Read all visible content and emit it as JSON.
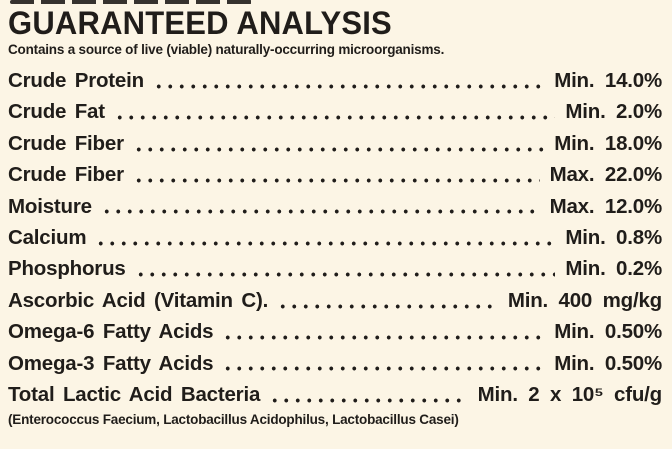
{
  "colors": {
    "background": "#FCF5E5",
    "ink": "#201D1A"
  },
  "header": {
    "title": "GUARANTEED ANALYSIS",
    "subtitle": "Contains a source of live (viable) naturally-occurring microorganisms."
  },
  "analysis": {
    "rows": [
      {
        "label": "Crude Protein",
        "value": "Min. 14.0%"
      },
      {
        "label": "Crude Fat",
        "value": "Min. 2.0%"
      },
      {
        "label": "Crude Fiber",
        "value": "Min. 18.0%"
      },
      {
        "label": "Crude Fiber",
        "value": "Max. 22.0%"
      },
      {
        "label": "Moisture",
        "value": "Max. 12.0%"
      },
      {
        "label": "Calcium",
        "value": "Min. 0.8%"
      },
      {
        "label": "Phosphorus",
        "value": "Min. 0.2%"
      },
      {
        "label": "Ascorbic Acid (Vitamin C).",
        "value": "Min. 400 mg/kg"
      },
      {
        "label": "Omega-6 Fatty Acids",
        "value": "Min. 0.50%"
      },
      {
        "label": "Omega-3 Fatty Acids",
        "value": "Min. 0.50%"
      },
      {
        "label": "Total Lactic Acid Bacteria",
        "value": "Min. 2 x 10⁵ cfu/g"
      }
    ],
    "footnote": "(Enterococcus Faecium, Lactobacillus Acidophilus, Lactobacillus Casei)"
  }
}
